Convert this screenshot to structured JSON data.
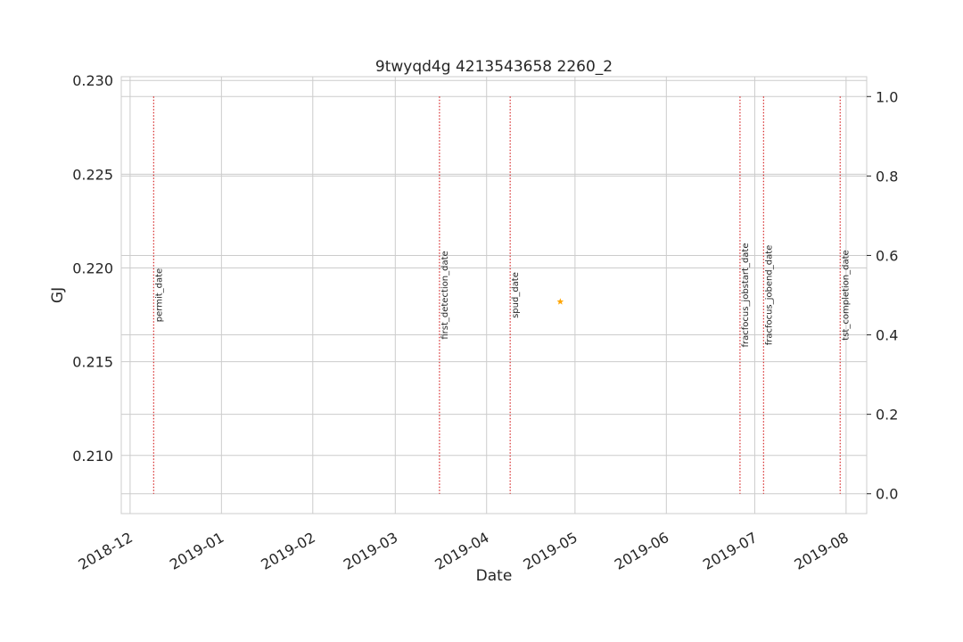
{
  "chart_data": {
    "type": "scatter",
    "title": "9twyqd4g 4213543658 2260_2",
    "xlabel": "Date",
    "ylabel": "GJ",
    "ylabel_color": "#1f77b4",
    "x_ticks": [
      "2018-12",
      "2019-01",
      "2019-02",
      "2019-03",
      "2019-04",
      "2019-05",
      "2019-06",
      "2019-07",
      "2019-08"
    ],
    "y_left_ticks": [
      "0.210",
      "0.215",
      "0.220",
      "0.225",
      "0.230"
    ],
    "y_right_ticks": [
      "0.0",
      "0.2",
      "0.4",
      "0.6",
      "0.8",
      "1.0"
    ],
    "xlim": [
      "2018-11-28",
      "2019-08-08"
    ],
    "ylim_left": [
      0.2069,
      0.2302
    ],
    "ylim_right": [
      -0.05,
      1.05
    ],
    "grid": true,
    "series": [
      {
        "marker": "star",
        "color": "#ffa500",
        "points": [
          {
            "x": "2019-04-26",
            "y": 0.2182
          }
        ]
      }
    ],
    "event_lines": {
      "color": "#d62728",
      "y_range_right": [
        0.0,
        1.0
      ],
      "label_y_right": 0.5,
      "events": [
        {
          "label": "permit_date",
          "date": "2018-12-09"
        },
        {
          "label": "first_detection_date",
          "date": "2019-03-16"
        },
        {
          "label": "spud_date",
          "date": "2019-04-09"
        },
        {
          "label": "fracfocus_jobstart_date",
          "date": "2019-06-26"
        },
        {
          "label": "fracfocus_jobend_date",
          "date": "2019-07-04"
        },
        {
          "label": "tst_completion_date",
          "date": "2019-07-30"
        }
      ]
    }
  }
}
